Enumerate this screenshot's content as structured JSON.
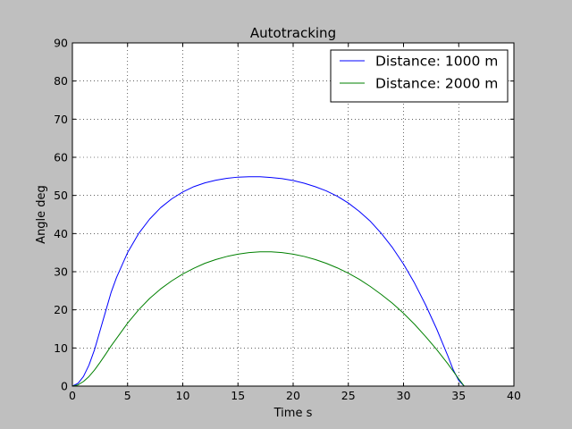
{
  "chart_data": {
    "type": "line",
    "title": "Autotracking",
    "xlabel": "Time s",
    "ylabel": "Angle deg",
    "xlim": [
      0,
      40
    ],
    "ylim": [
      0,
      90
    ],
    "xticks": [
      0,
      5,
      10,
      15,
      20,
      25,
      30,
      35,
      40
    ],
    "yticks": [
      0,
      10,
      20,
      30,
      40,
      50,
      60,
      70,
      80,
      90
    ],
    "grid": true,
    "legend_position": "top-right",
    "background_color": "#bfbfbf",
    "plot_background_color": "#ffffff",
    "series": [
      {
        "name": "Distance: 1000 m",
        "color": "#0000ff",
        "x": [
          0,
          0.5,
          1,
          1.5,
          2,
          2.5,
          3,
          3.5,
          4,
          5,
          6,
          7,
          8,
          9,
          10,
          11,
          12,
          13,
          14,
          15,
          16,
          17,
          18,
          19,
          20,
          21,
          22,
          23,
          24,
          25,
          26,
          27,
          28,
          29,
          30,
          31,
          32,
          33,
          34,
          34.5,
          35,
          35.5
        ],
        "y": [
          0,
          0.7,
          2.5,
          5.5,
          9.5,
          14.5,
          19.5,
          24.5,
          28.5,
          35,
          40,
          43.8,
          46.8,
          49.1,
          50.9,
          52.3,
          53.3,
          54.0,
          54.5,
          54.8,
          54.9,
          54.9,
          54.7,
          54.4,
          53.9,
          53.2,
          52.3,
          51.2,
          49.8,
          48.0,
          45.8,
          43.2,
          40.0,
          36.3,
          32.0,
          27.0,
          21.3,
          15.0,
          8.0,
          4.3,
          1.5,
          0
        ]
      },
      {
        "name": "Distance: 2000 m",
        "color": "#008000",
        "x": [
          0,
          0.5,
          1,
          1.5,
          2,
          2.5,
          3,
          3.5,
          4,
          5,
          6,
          7,
          8,
          9,
          10,
          11,
          12,
          13,
          14,
          15,
          16,
          17,
          18,
          19,
          20,
          21,
          22,
          23,
          24,
          25,
          26,
          27,
          28,
          29,
          30,
          31,
          32,
          33,
          34,
          34.5,
          35,
          35.5
        ],
        "y": [
          0,
          0.3,
          1.2,
          2.5,
          4.2,
          6.2,
          8.3,
          10.5,
          12.5,
          16.5,
          20.0,
          23.0,
          25.5,
          27.6,
          29.4,
          30.9,
          32.2,
          33.2,
          34.0,
          34.6,
          35.0,
          35.2,
          35.2,
          35.0,
          34.6,
          34.0,
          33.2,
          32.2,
          31.0,
          29.6,
          28.0,
          26.1,
          24.0,
          21.7,
          19.1,
          16.2,
          13.0,
          9.6,
          5.9,
          3.9,
          1.9,
          0
        ]
      }
    ]
  }
}
